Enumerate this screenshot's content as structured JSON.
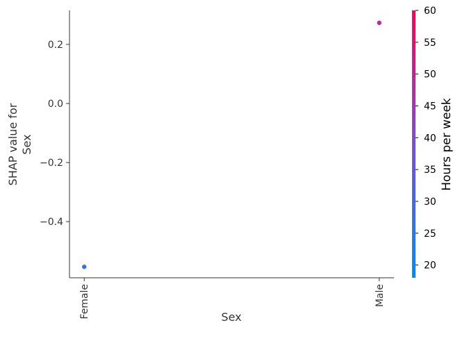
{
  "chart_data": {
    "type": "scatter",
    "title": "",
    "xlabel": "Sex",
    "ylabel_lines": [
      "SHAP value for",
      "Sex"
    ],
    "x_categories": [
      "Female",
      "Male"
    ],
    "xlim": [
      -0.05,
      1.05
    ],
    "ylim": [
      -0.59,
      0.315
    ],
    "y_ticks": [
      0.2,
      0.0,
      -0.2,
      -0.4
    ],
    "y_tick_labels": [
      "0.2",
      "0.0",
      "−0.2",
      "−0.4"
    ],
    "points": [
      {
        "x": "Female",
        "y": -0.553,
        "color_value": 27
      },
      {
        "x": "Male",
        "y": 0.273,
        "color_value": 48
      }
    ],
    "colorbar": {
      "label": "Hours per week",
      "range": [
        18,
        60
      ],
      "ticks": [
        20,
        25,
        30,
        35,
        40,
        45,
        50,
        55,
        60
      ],
      "color_low": "#008afb",
      "color_mid": "#7b4fd6",
      "color_high": "#ff0052"
    },
    "grid": false,
    "legend": "none"
  }
}
